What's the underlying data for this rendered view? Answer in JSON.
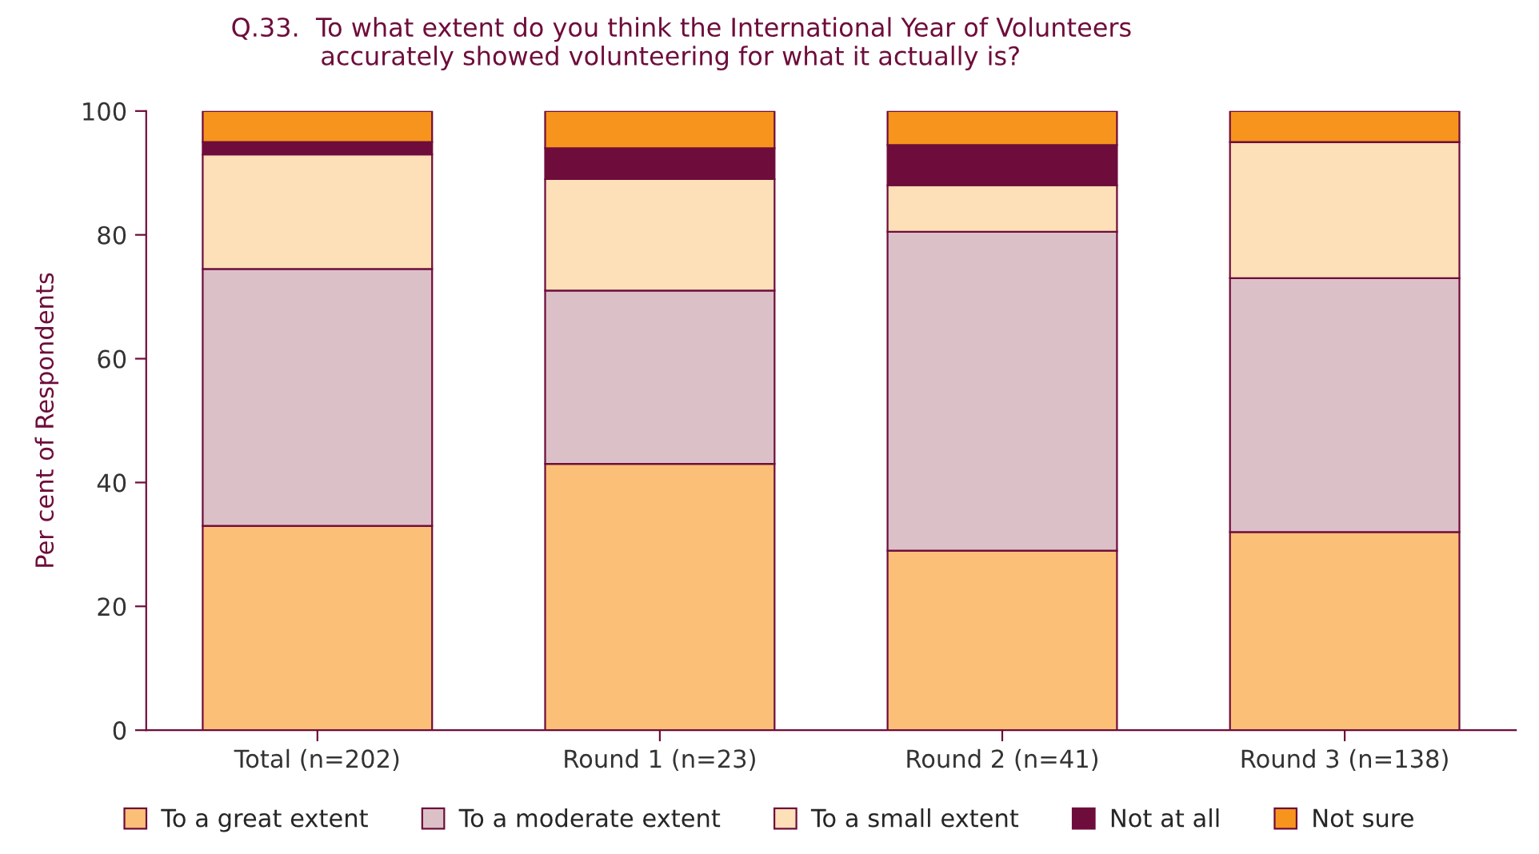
{
  "chart_data": {
    "type": "bar",
    "stacked": true,
    "title": "Q.33.  To what extent do you think the International Year of Volunteers\n           accurately showed volunteering for what it actually is?",
    "ylabel": "Per cent of Respondents",
    "categories": [
      "Total (n=202)",
      "Round 1 (n=23)",
      "Round 2 (n=41)",
      "Round 3 (n=138)"
    ],
    "series": [
      {
        "name": "To a great extent",
        "color": "#fbbf77",
        "values": [
          33,
          43,
          29,
          32
        ]
      },
      {
        "name": "To a moderate extent",
        "color": "#dcc0c8",
        "values": [
          41.5,
          28,
          51.5,
          41
        ]
      },
      {
        "name": "To a small extent",
        "color": "#fddfb8",
        "values": [
          18.5,
          18,
          7.5,
          22
        ]
      },
      {
        "name": "Not at all",
        "color": "#6e0d3b",
        "values": [
          2,
          5,
          6.5,
          0
        ]
      },
      {
        "name": "Not sure",
        "color": "#f7941d",
        "values": [
          5,
          6,
          5.5,
          5
        ]
      }
    ],
    "ylim": [
      0,
      100
    ],
    "yticks": [
      0,
      20,
      40,
      60,
      80,
      100
    ],
    "grid": false,
    "legend": "bottom"
  }
}
